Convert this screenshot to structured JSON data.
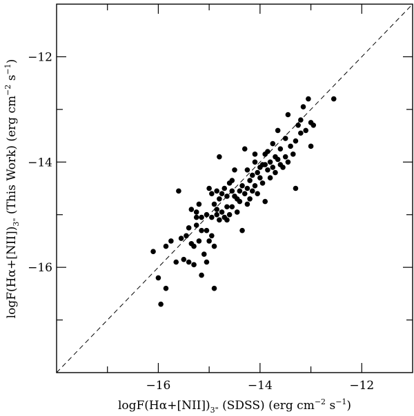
{
  "chart_data": {
    "type": "scatter",
    "title": "",
    "xlabel": "logF(Hα+[NII])3\" (SDSS) (erg cm−2 s−1)",
    "ylabel": "logF(Hα+[NII])3\" (This Work) (erg cm−2 s−1)",
    "xlabel_parts": {
      "pre": "logF(Hα+[NII])",
      "sub": "3\"",
      "mid": " (SDSS) (erg cm",
      "sup1": "−2",
      "mid2": " s",
      "sup2": "−1",
      "post": ")"
    },
    "ylabel_parts": {
      "pre": "logF(Hα+[NII])",
      "sub": "3\"",
      "mid": " (This Work) (erg cm",
      "sup1": "−2",
      "mid2": " s",
      "sup2": "−1",
      "post": ")"
    },
    "xlim": [
      -18,
      -11
    ],
    "ylim": [
      -18,
      -11
    ],
    "x_ticks": [
      {
        "v": -16,
        "label": "−16"
      },
      {
        "v": -14,
        "label": "−14"
      },
      {
        "v": -12,
        "label": "−12"
      }
    ],
    "y_ticks": [
      {
        "v": -16,
        "label": "−16"
      },
      {
        "v": -14,
        "label": "−14"
      },
      {
        "v": -12,
        "label": "−12"
      }
    ],
    "minor_step": 0.5,
    "reference_line": {
      "style": "dashed",
      "from": [
        -18,
        -18
      ],
      "to": [
        -11,
        -11
      ]
    },
    "grid": false,
    "legend": "none",
    "marker_color": "#000000",
    "points": [
      [
        -16.1,
        -15.7
      ],
      [
        -16.0,
        -16.2
      ],
      [
        -15.95,
        -16.7
      ],
      [
        -15.85,
        -16.4
      ],
      [
        -15.85,
        -15.6
      ],
      [
        -15.75,
        -15.5
      ],
      [
        -15.6,
        -14.55
      ],
      [
        -15.65,
        -15.9
      ],
      [
        -15.55,
        -15.45
      ],
      [
        -15.5,
        -15.85
      ],
      [
        -15.45,
        -15.4
      ],
      [
        -15.4,
        -15.9
      ],
      [
        -15.4,
        -15.25
      ],
      [
        -15.35,
        -14.9
      ],
      [
        -15.35,
        -15.55
      ],
      [
        -15.3,
        -15.95
      ],
      [
        -15.3,
        -15.6
      ],
      [
        -15.25,
        -15.05
      ],
      [
        -15.25,
        -14.95
      ],
      [
        -15.25,
        -15.2
      ],
      [
        -15.2,
        -15.5
      ],
      [
        -15.15,
        -16.15
      ],
      [
        -15.15,
        -15.3
      ],
      [
        -15.15,
        -15.05
      ],
      [
        -15.1,
        -15.75
      ],
      [
        -15.05,
        -15.9
      ],
      [
        -15.05,
        -15.3
      ],
      [
        -15.05,
        -15.0
      ],
      [
        -15.0,
        -14.5
      ],
      [
        -15.0,
        -15.5
      ],
      [
        -14.95,
        -15.05
      ],
      [
        -14.95,
        -14.6
      ],
      [
        -14.95,
        -15.4
      ],
      [
        -14.9,
        -15.6
      ],
      [
        -14.9,
        -14.8
      ],
      [
        -14.9,
        -16.4
      ],
      [
        -14.85,
        -14.9
      ],
      [
        -14.85,
        -15.0
      ],
      [
        -14.85,
        -14.55
      ],
      [
        -14.8,
        -14.7
      ],
      [
        -14.8,
        -15.1
      ],
      [
        -14.8,
        -13.9
      ],
      [
        -14.75,
        -14.6
      ],
      [
        -14.75,
        -14.95
      ],
      [
        -14.7,
        -14.5
      ],
      [
        -14.7,
        -15.05
      ],
      [
        -14.65,
        -14.85
      ],
      [
        -14.65,
        -14.65
      ],
      [
        -14.6,
        -14.4
      ],
      [
        -14.6,
        -15.0
      ],
      [
        -14.55,
        -14.85
      ],
      [
        -14.55,
        -14.55
      ],
      [
        -14.5,
        -14.65
      ],
      [
        -14.5,
        -14.15
      ],
      [
        -14.45,
        -14.7
      ],
      [
        -14.45,
        -14.95
      ],
      [
        -14.4,
        -14.55
      ],
      [
        -14.4,
        -14.75
      ],
      [
        -14.35,
        -15.3
      ],
      [
        -14.35,
        -14.45
      ],
      [
        -14.3,
        -14.6
      ],
      [
        -14.3,
        -13.75
      ],
      [
        -14.25,
        -14.5
      ],
      [
        -14.25,
        -14.15
      ],
      [
        -14.2,
        -14.7
      ],
      [
        -14.2,
        -14.35
      ],
      [
        -14.15,
        -14.25
      ],
      [
        -14.15,
        -14.55
      ],
      [
        -14.1,
        -14.0
      ],
      [
        -14.1,
        -14.45
      ],
      [
        -14.05,
        -14.6
      ],
      [
        -14.05,
        -14.2
      ],
      [
        -14.0,
        -14.3
      ],
      [
        -14.0,
        -14.1
      ],
      [
        -13.95,
        -14.05
      ],
      [
        -13.95,
        -14.4
      ],
      [
        -13.9,
        -14.75
      ],
      [
        -13.9,
        -13.85
      ],
      [
        -13.85,
        -14.15
      ],
      [
        -13.85,
        -13.8
      ],
      [
        -13.8,
        -14.0
      ],
      [
        -13.8,
        -14.3
      ],
      [
        -13.75,
        -14.1
      ],
      [
        -13.75,
        -13.65
      ],
      [
        -13.7,
        -13.9
      ],
      [
        -13.7,
        -14.2
      ],
      [
        -13.65,
        -13.95
      ],
      [
        -13.6,
        -14.05
      ],
      [
        -13.6,
        -13.75
      ],
      [
        -13.55,
        -14.1
      ],
      [
        -13.5,
        -13.9
      ],
      [
        -13.5,
        -13.55
      ],
      [
        -13.45,
        -14.0
      ],
      [
        -13.4,
        -13.7
      ],
      [
        -13.35,
        -13.85
      ],
      [
        -13.3,
        -14.5
      ],
      [
        -13.3,
        -13.6
      ],
      [
        -13.25,
        -13.3
      ],
      [
        -13.2,
        -13.45
      ],
      [
        -13.2,
        -13.2
      ],
      [
        -13.15,
        -12.95
      ],
      [
        -13.1,
        -13.4
      ],
      [
        -13.05,
        -12.8
      ],
      [
        -13.0,
        -13.25
      ],
      [
        -13.0,
        -13.7
      ],
      [
        -12.95,
        -13.3
      ],
      [
        -12.55,
        -12.8
      ],
      [
        -13.45,
        -13.1
      ],
      [
        -13.65,
        -13.4
      ],
      [
        -14.55,
        -14.35
      ],
      [
        -14.65,
        -15.1
      ],
      [
        -14.25,
        -14.8
      ],
      [
        -15.2,
        -14.8
      ],
      [
        -14.1,
        -13.85
      ],
      [
        -13.9,
        -14.05
      ]
    ]
  }
}
